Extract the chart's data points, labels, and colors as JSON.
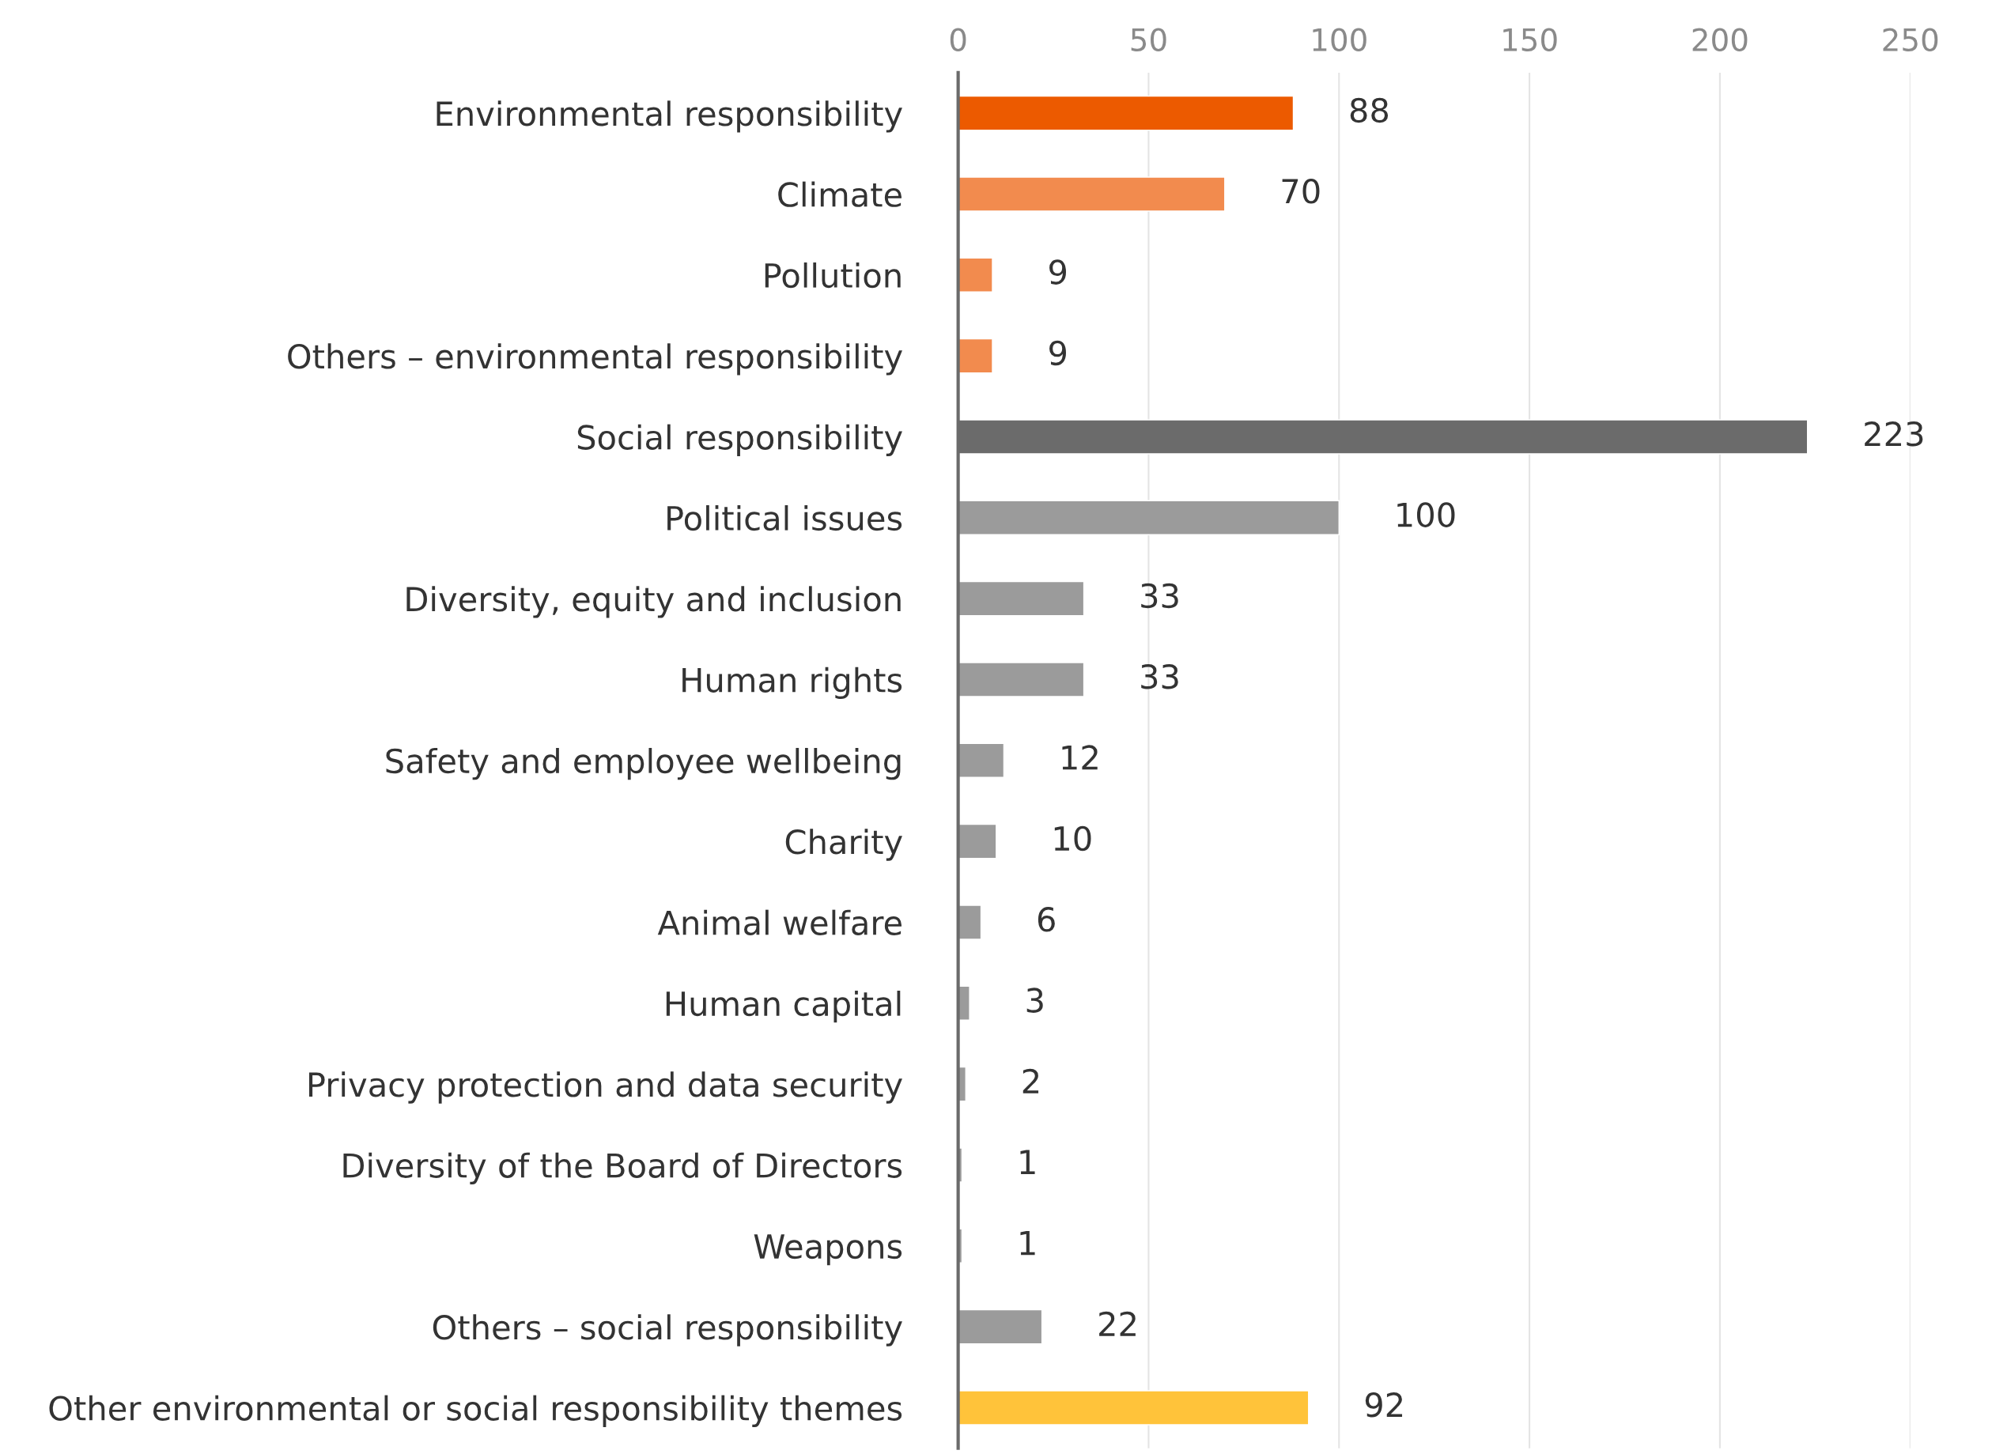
{
  "chart_data": {
    "type": "bar",
    "orientation": "horizontal",
    "categories": [
      "Environmental responsibility",
      "Climate",
      "Pollution",
      "Others – environmental responsibility",
      "Social responsibility",
      "Political issues",
      "Diversity, equity and inclusion",
      "Human rights",
      "Safety and employee wellbeing",
      "Charity",
      "Animal welfare",
      "Human capital",
      "Privacy protection and data security",
      "Diversity of the Board of Directors",
      "Weapons",
      "Others – social responsibility",
      "Other environmental or social responsibility themes"
    ],
    "values": [
      88,
      70,
      9,
      9,
      223,
      100,
      33,
      33,
      12,
      10,
      6,
      3,
      2,
      1,
      1,
      22,
      92
    ],
    "colors": [
      "#ec5a00",
      "#f28b4e",
      "#f28b4e",
      "#f28b4e",
      "#6b6b6b",
      "#9b9b9b",
      "#9b9b9b",
      "#9b9b9b",
      "#9b9b9b",
      "#9b9b9b",
      "#9b9b9b",
      "#9b9b9b",
      "#9b9b9b",
      "#9b9b9b",
      "#9b9b9b",
      "#9b9b9b",
      "#ffc33a"
    ],
    "xlim": [
      0,
      250
    ],
    "xticks": [
      0,
      50,
      100,
      150,
      200,
      250
    ],
    "grid": "x",
    "data_labels": true
  }
}
